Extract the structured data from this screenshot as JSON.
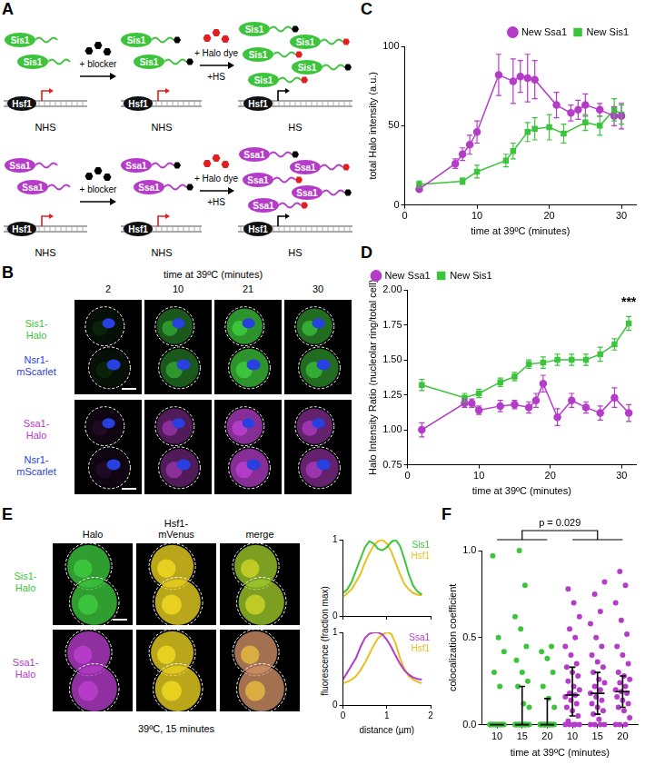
{
  "panel_labels": [
    "A",
    "B",
    "C",
    "D",
    "E",
    "F"
  ],
  "diagram_A": {
    "rows": [
      {
        "protein": "Sis1",
        "color": "#3cc43c"
      },
      {
        "protein": "Ssa1",
        "color": "#b43cc8"
      }
    ],
    "factor": "Hsf1",
    "steps": [
      [
        "+ blocker"
      ],
      [
        "+ Halo dye",
        "+HS"
      ]
    ],
    "conditions": [
      "NHS",
      "NHS",
      "HS"
    ]
  },
  "images_B": {
    "header": "time at 39ºC (minutes)",
    "times": [
      "2",
      "10",
      "21",
      "30"
    ],
    "rows": [
      {
        "color": "#3cc43c",
        "labels": [
          {
            "lines": [
              "Sis1-",
              "Halo"
            ],
            "color": "#3cc43c"
          },
          {
            "lines": [
              "Nsr1-",
              "mScarlet"
            ],
            "color": "#2840e0"
          }
        ]
      },
      {
        "color": "#b43cc8",
        "labels": [
          {
            "lines": [
              "Ssa1-",
              "Halo"
            ],
            "color": "#b43cc8"
          },
          {
            "lines": [
              "Nsr1-",
              "mScarlet"
            ],
            "color": "#2840e0"
          }
        ]
      }
    ]
  },
  "images_E": {
    "columns": [
      [
        "Halo"
      ],
      [
        "Hsf1-",
        "mVenus"
      ],
      [
        "merge"
      ]
    ],
    "factor_color": "#e8d020",
    "rows": [
      {
        "lines": [
          "Sis1-",
          "Halo"
        ],
        "color": "#3cc43c"
      },
      {
        "lines": [
          "Ssa1-",
          "Halo"
        ],
        "color": "#b43cc8"
      }
    ],
    "caption": "39ºC, 15 minutes",
    "profile_y_label": "fluorescence (fraction max)"
  },
  "chart_data": [
    {
      "type": "line",
      "x_label": "time at 39ºC (minutes)",
      "y_label": "total Halo intensity (a.u.)",
      "xlim": [
        0,
        32
      ],
      "xticks": [
        0,
        10,
        20,
        30
      ],
      "ylim": [
        0,
        100
      ],
      "yticks": [
        0,
        50,
        100
      ],
      "grid": false,
      "legend": "upper right",
      "series": [
        {
          "name": "New Ssa1",
          "color": "#b43cc8",
          "marker": "circle",
          "line_style": "solid",
          "x": [
            2,
            7,
            8,
            9,
            10,
            13,
            15,
            16,
            17,
            18,
            21,
            23,
            24,
            25,
            27,
            29,
            30
          ],
          "values": [
            10,
            26,
            32,
            38,
            46,
            82,
            78,
            81,
            80,
            79,
            63,
            58,
            60,
            63,
            60,
            56,
            56
          ],
          "errors": [
            1,
            3,
            4,
            6,
            7,
            13,
            14,
            10,
            15,
            12,
            8,
            5,
            6,
            7,
            4,
            6,
            8
          ]
        },
        {
          "name": "New Sis1",
          "color": "#3cc43c",
          "marker": "square",
          "line_style": "solid",
          "x": [
            2,
            8,
            10,
            14,
            15,
            17,
            18,
            20,
            22,
            25,
            27,
            29,
            30
          ],
          "values": [
            13,
            15,
            21,
            28,
            34,
            46,
            48,
            49,
            45,
            52,
            50,
            60,
            57
          ],
          "errors": [
            2,
            2,
            4,
            4,
            5,
            6,
            7,
            8,
            6,
            5,
            6,
            7,
            6
          ]
        }
      ]
    },
    {
      "type": "line",
      "x_label": "time at 39ºC (minutes)",
      "y_label": "Halo Intensity Ratio (nucleolar ring/total cell)",
      "xlim": [
        0,
        32
      ],
      "xticks": [
        0,
        10,
        20,
        30
      ],
      "ylim": [
        0.75,
        2.0
      ],
      "yticks": [
        0.75,
        {
          "value": 1.0,
          "label": "1.00"
        },
        1.25,
        {
          "value": 1.5,
          "label": "1.50"
        },
        1.75,
        {
          "value": 2.0,
          "label": "2.00"
        }
      ],
      "grid": false,
      "legend": "upper left",
      "annotations": [
        {
          "text": "***",
          "x": 31,
          "y": 1.86
        }
      ],
      "series": [
        {
          "name": "New Ssa1",
          "color": "#b43cc8",
          "marker": "circle",
          "line_style": "solid",
          "x": [
            2,
            8,
            9,
            10,
            13,
            15,
            17,
            18,
            19,
            21,
            23,
            25,
            27,
            29,
            31
          ],
          "values": [
            1.0,
            1.19,
            1.19,
            1.14,
            1.17,
            1.18,
            1.16,
            1.21,
            1.33,
            1.09,
            1.21,
            1.16,
            1.12,
            1.23,
            1.12
          ],
          "errors": [
            0.05,
            0.03,
            0.03,
            0.03,
            0.04,
            0.03,
            0.04,
            0.05,
            0.06,
            0.06,
            0.05,
            0.04,
            0.05,
            0.07,
            0.06
          ]
        },
        {
          "name": "New Sis1",
          "color": "#3cc43c",
          "marker": "square",
          "line_style": "solid",
          "x": [
            2,
            8,
            10,
            13,
            15,
            17,
            19,
            21,
            23,
            25,
            27,
            29,
            31
          ],
          "values": [
            1.32,
            1.23,
            1.26,
            1.34,
            1.38,
            1.47,
            1.48,
            1.5,
            1.5,
            1.5,
            1.54,
            1.61,
            1.76
          ],
          "errors": [
            0.04,
            0.03,
            0.03,
            0.03,
            0.03,
            0.03,
            0.04,
            0.04,
            0.04,
            0.04,
            0.05,
            0.04,
            0.05
          ]
        }
      ]
    },
    {
      "type": "line",
      "x": [
        0,
        0.1,
        0.2,
        0.3,
        0.4,
        0.5,
        0.6,
        0.7,
        0.8,
        0.9,
        1.0,
        1.1,
        1.2,
        1.3,
        1.4,
        1.5,
        1.6,
        1.7,
        1.8
      ],
      "xlim": [
        0,
        2
      ],
      "xticks": [
        0,
        1,
        2
      ],
      "ylim": [
        0,
        1
      ],
      "yticks": [
        0,
        1
      ],
      "grid": false,
      "tick_labels": "y",
      "legend": "inline",
      "series": [
        {
          "name": "Sis1",
          "color": "#3cc43c",
          "marker": "none",
          "line_style": "solid",
          "values": [
            0.3,
            0.35,
            0.45,
            0.6,
            0.75,
            0.9,
            0.98,
            0.95,
            0.88,
            0.86,
            0.9,
            0.97,
            1.0,
            0.92,
            0.75,
            0.55,
            0.4,
            0.32,
            0.28
          ]
        },
        {
          "name": "Hsf1",
          "color": "#e8c020",
          "marker": "none",
          "line_style": "solid",
          "values": [
            0.25,
            0.3,
            0.35,
            0.45,
            0.55,
            0.7,
            0.82,
            0.92,
            0.98,
            1.0,
            0.95,
            0.85,
            0.7,
            0.55,
            0.42,
            0.35,
            0.3,
            0.28,
            0.27
          ]
        }
      ]
    },
    {
      "type": "line",
      "x_label": "distance (µm)",
      "x": [
        0,
        0.1,
        0.2,
        0.3,
        0.4,
        0.5,
        0.6,
        0.7,
        0.8,
        0.9,
        1.0,
        1.1,
        1.2,
        1.3,
        1.4,
        1.5,
        1.6,
        1.7,
        1.8
      ],
      "xlim": [
        0,
        2
      ],
      "xticks": [
        0,
        1,
        2
      ],
      "ylim": [
        0,
        1
      ],
      "yticks": [
        0,
        1
      ],
      "grid": false,
      "legend": "inline",
      "series": [
        {
          "name": "Ssa1",
          "color": "#b43cc8",
          "marker": "none",
          "line_style": "solid",
          "values": [
            0.35,
            0.45,
            0.55,
            0.65,
            0.8,
            0.92,
            0.98,
            1.0,
            1.0,
            0.97,
            0.9,
            0.8,
            0.68,
            0.57,
            0.48,
            0.42,
            0.38,
            0.36,
            0.35
          ]
        },
        {
          "name": "Hsf1",
          "color": "#e8c020",
          "marker": "none",
          "line_style": "solid",
          "values": [
            0.3,
            0.32,
            0.35,
            0.4,
            0.48,
            0.58,
            0.7,
            0.82,
            0.92,
            0.97,
            1.0,
            0.98,
            0.85,
            0.65,
            0.5,
            0.4,
            0.35,
            0.32,
            0.3
          ]
        }
      ]
    },
    {
      "type": "scatter",
      "x_label": "time at 39ºC (minutes)",
      "y_label": "colocalization coefficient",
      "categories": [
        "10",
        "15",
        "20",
        "10",
        "15",
        "20"
      ],
      "colors": [
        "#3cc43c",
        "#3cc43c",
        "#3cc43c",
        "#b43cc8",
        "#b43cc8",
        "#b43cc8"
      ],
      "ylim": [
        0,
        1
      ],
      "yticks": [
        {
          "value": 0,
          "label": "0.0"
        },
        0.5,
        {
          "value": 1,
          "label": "1.0"
        }
      ],
      "grid": false,
      "annotations": [
        {
          "text": "p = 0.029"
        }
      ],
      "points": [
        [
          0,
          0,
          0,
          0,
          0,
          0,
          0,
          0,
          0,
          0,
          0,
          0,
          0.22,
          0.3,
          0.42,
          0.5,
          0.97
        ],
        [
          0,
          0,
          0,
          0,
          0,
          0,
          0,
          0,
          0,
          0,
          0,
          0,
          0,
          0,
          0.1,
          0.12,
          0.22,
          0.25,
          0.3,
          0.37,
          0.45,
          0.55,
          0.62,
          0.8,
          1.0
        ],
        [
          0,
          0,
          0,
          0,
          0,
          0,
          0,
          0,
          0,
          0,
          0,
          0,
          0,
          0,
          0.1,
          0.15,
          0.22,
          0.3,
          0.38,
          0.42,
          0.45
        ],
        [
          0,
          0,
          0,
          0,
          0,
          0.02,
          0.05,
          0.08,
          0.1,
          0.12,
          0.14,
          0.16,
          0.17,
          0.18,
          0.2,
          0.22,
          0.25,
          0.28,
          0.3,
          0.33,
          0.35,
          0.4,
          0.45,
          0.5,
          0.55,
          0.62,
          0.7,
          0.78
        ],
        [
          0,
          0,
          0,
          0,
          0.03,
          0.06,
          0.08,
          0.1,
          0.12,
          0.14,
          0.16,
          0.18,
          0.2,
          0.22,
          0.24,
          0.26,
          0.3,
          0.33,
          0.36,
          0.4,
          0.45,
          0.5,
          0.58,
          0.65,
          0.75,
          0.82
        ],
        [
          0,
          0,
          0,
          0.04,
          0.08,
          0.1,
          0.12,
          0.14,
          0.16,
          0.18,
          0.19,
          0.2,
          0.22,
          0.24,
          0.26,
          0.28,
          0.3,
          0.35,
          0.4,
          0.45,
          0.52,
          0.6,
          0.7,
          0.8,
          0.88
        ]
      ],
      "median": [
        0,
        0,
        0,
        0.17,
        0.18,
        0.19
      ],
      "q1": [
        0,
        0,
        0,
        0.05,
        0.06,
        0.1
      ],
      "q3": [
        0,
        0.22,
        0.15,
        0.33,
        0.3,
        0.28
      ]
    }
  ]
}
